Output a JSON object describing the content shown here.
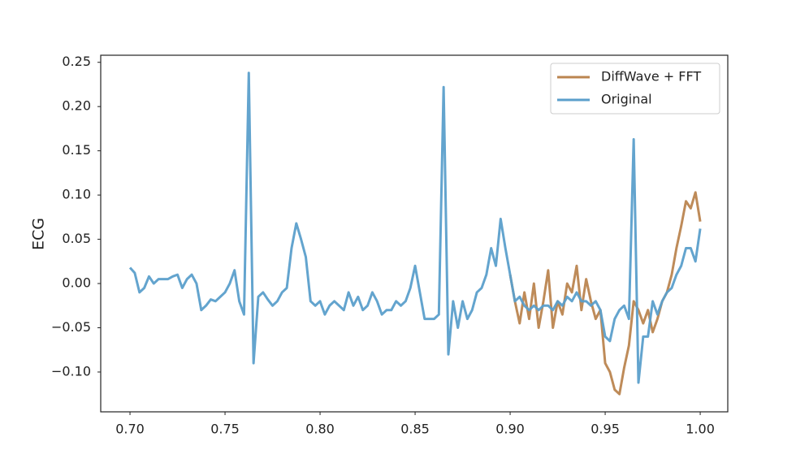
{
  "chart_data": {
    "type": "line",
    "y_label": "ECG",
    "x": [
      0.7,
      0.7025,
      0.705,
      0.7075,
      0.71,
      0.7125,
      0.715,
      0.7175,
      0.72,
      0.7225,
      0.725,
      0.7275,
      0.73,
      0.7325,
      0.735,
      0.7375,
      0.74,
      0.7425,
      0.745,
      0.7475,
      0.75,
      0.7525,
      0.755,
      0.7575,
      0.76,
      0.7625,
      0.765,
      0.7675,
      0.77,
      0.7725,
      0.775,
      0.7775,
      0.78,
      0.7825,
      0.785,
      0.7875,
      0.79,
      0.7925,
      0.795,
      0.7975,
      0.8,
      0.8025,
      0.805,
      0.8075,
      0.81,
      0.8125,
      0.815,
      0.8175,
      0.82,
      0.8225,
      0.825,
      0.8275,
      0.83,
      0.8325,
      0.835,
      0.8375,
      0.84,
      0.8425,
      0.845,
      0.8475,
      0.85,
      0.8525,
      0.855,
      0.8575,
      0.86,
      0.8625,
      0.865,
      0.8675,
      0.87,
      0.8725,
      0.875,
      0.8775,
      0.88,
      0.8825,
      0.885,
      0.8875,
      0.89,
      0.8925,
      0.895,
      0.8975,
      0.9,
      0.9025,
      0.905,
      0.9075,
      0.91,
      0.9125,
      0.915,
      0.9175,
      0.92,
      0.9225,
      0.925,
      0.9275,
      0.93,
      0.9325,
      0.935,
      0.9375,
      0.94,
      0.9425,
      0.945,
      0.9475,
      0.95,
      0.9525,
      0.955,
      0.9575,
      0.96,
      0.9625,
      0.965,
      0.9675,
      0.97,
      0.9725,
      0.975,
      0.9775,
      0.98,
      0.9825,
      0.985,
      0.9875,
      0.99,
      0.9925,
      0.995,
      0.9975,
      1.0
    ],
    "series": [
      {
        "name": "DiffWave + FFT",
        "color": "#bb8550",
        "values": [
          null,
          null,
          null,
          null,
          null,
          null,
          null,
          null,
          null,
          null,
          null,
          null,
          null,
          null,
          null,
          null,
          null,
          null,
          null,
          null,
          null,
          null,
          null,
          null,
          null,
          null,
          null,
          null,
          null,
          null,
          null,
          null,
          null,
          null,
          null,
          null,
          null,
          null,
          null,
          null,
          null,
          null,
          null,
          null,
          null,
          null,
          null,
          null,
          null,
          null,
          null,
          null,
          null,
          null,
          null,
          null,
          null,
          null,
          null,
          null,
          null,
          null,
          null,
          null,
          null,
          null,
          null,
          null,
          null,
          null,
          null,
          null,
          null,
          null,
          null,
          null,
          null,
          null,
          null,
          null,
          0.01,
          -0.02,
          -0.045,
          -0.01,
          -0.04,
          0.0,
          -0.05,
          -0.02,
          0.015,
          -0.05,
          -0.02,
          -0.035,
          0.0,
          -0.01,
          0.02,
          -0.03,
          0.005,
          -0.02,
          -0.04,
          -0.03,
          -0.09,
          -0.1,
          -0.12,
          -0.125,
          -0.095,
          -0.07,
          -0.02,
          -0.03,
          -0.045,
          -0.03,
          -0.055,
          -0.04,
          -0.02,
          -0.01,
          0.01,
          0.04,
          0.065,
          0.093,
          0.085,
          0.103,
          0.07
        ]
      },
      {
        "name": "Original",
        "color": "#5b9fcb",
        "values": [
          0.018,
          0.012,
          -0.01,
          -0.005,
          0.008,
          0.0,
          0.005,
          0.005,
          0.005,
          0.008,
          0.01,
          -0.005,
          0.005,
          0.01,
          0.0,
          -0.03,
          -0.025,
          -0.018,
          -0.02,
          -0.015,
          -0.01,
          0.0,
          0.015,
          -0.02,
          -0.035,
          0.238,
          -0.09,
          -0.015,
          -0.01,
          -0.018,
          -0.025,
          -0.02,
          -0.01,
          -0.005,
          0.04,
          0.068,
          0.05,
          0.03,
          -0.02,
          -0.025,
          -0.02,
          -0.035,
          -0.025,
          -0.02,
          -0.025,
          -0.03,
          -0.01,
          -0.025,
          -0.015,
          -0.03,
          -0.025,
          -0.01,
          -0.02,
          -0.035,
          -0.03,
          -0.03,
          -0.02,
          -0.025,
          -0.02,
          -0.005,
          0.02,
          -0.01,
          -0.04,
          -0.04,
          -0.04,
          -0.035,
          0.222,
          -0.08,
          -0.02,
          -0.05,
          -0.02,
          -0.04,
          -0.03,
          -0.01,
          -0.005,
          0.01,
          0.04,
          0.02,
          0.073,
          0.04,
          0.01,
          -0.02,
          -0.015,
          -0.025,
          -0.03,
          -0.025,
          -0.03,
          -0.025,
          -0.025,
          -0.03,
          -0.02,
          -0.025,
          -0.015,
          -0.02,
          -0.01,
          -0.02,
          -0.02,
          -0.025,
          -0.02,
          -0.03,
          -0.06,
          -0.065,
          -0.04,
          -0.03,
          -0.025,
          -0.04,
          0.163,
          -0.112,
          -0.06,
          -0.06,
          -0.02,
          -0.035,
          -0.02,
          -0.01,
          -0.005,
          0.01,
          0.02,
          0.04,
          0.04,
          0.025,
          0.062
        ]
      }
    ],
    "xlim": [
      0.6846,
      1.0145
    ],
    "xticks": [
      {
        "value": 0.7,
        "label": "0.70"
      },
      {
        "value": 0.75,
        "label": "0.75"
      },
      {
        "value": 0.8,
        "label": "0.80"
      },
      {
        "value": 0.85,
        "label": "0.85"
      },
      {
        "value": 0.9,
        "label": "0.90"
      },
      {
        "value": 0.95,
        "label": "0.95"
      },
      {
        "value": 1.0,
        "label": "1.00"
      }
    ],
    "ylim": [
      -0.145,
      0.258
    ],
    "yticks": [
      {
        "value": -0.1,
        "label": "−0.10"
      },
      {
        "value": -0.05,
        "label": "−0.05"
      },
      {
        "value": 0,
        "label": "0.00"
      },
      0.05,
      {
        "value": 0.1,
        "label": "0.10"
      },
      0.15,
      {
        "value": 0.2,
        "label": "0.20"
      },
      0.25
    ],
    "grid": false,
    "legend": "upper right"
  }
}
